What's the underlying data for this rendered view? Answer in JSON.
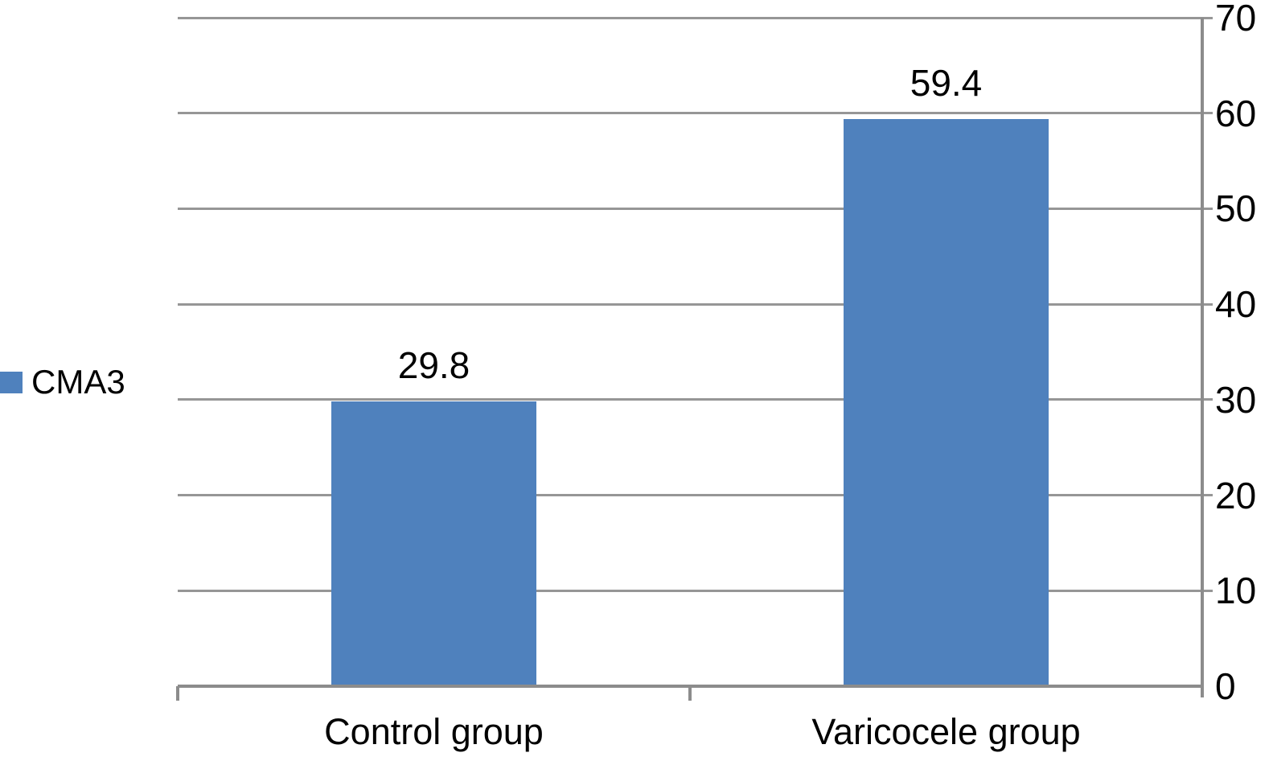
{
  "chart_data": {
    "type": "bar",
    "title": "",
    "xlabel": "",
    "ylabel": "",
    "categories": [
      "Control group",
      "Varicocele group"
    ],
    "series": [
      {
        "name": "CMA3",
        "values": [
          29.8,
          59.4
        ]
      }
    ],
    "value_labels": [
      "29.8",
      "59.4"
    ],
    "ylim": [
      0,
      70
    ],
    "yticks": [
      0,
      10,
      20,
      30,
      40,
      50,
      60,
      70
    ],
    "ytick_labels": [
      "0",
      "10",
      "20",
      "30",
      "40",
      "50",
      "60",
      "70"
    ],
    "grid": true,
    "y_axis_side": "right",
    "legend_position": "left",
    "legend": {
      "items": [
        {
          "label": "CMA3",
          "swatch_color": "#4F81BD"
        }
      ]
    },
    "colors": {
      "bar": "#4F81BD",
      "gridline": "#969696",
      "axis": "#8C8C8C",
      "text": "#000000",
      "background": "#FFFFFF"
    }
  }
}
